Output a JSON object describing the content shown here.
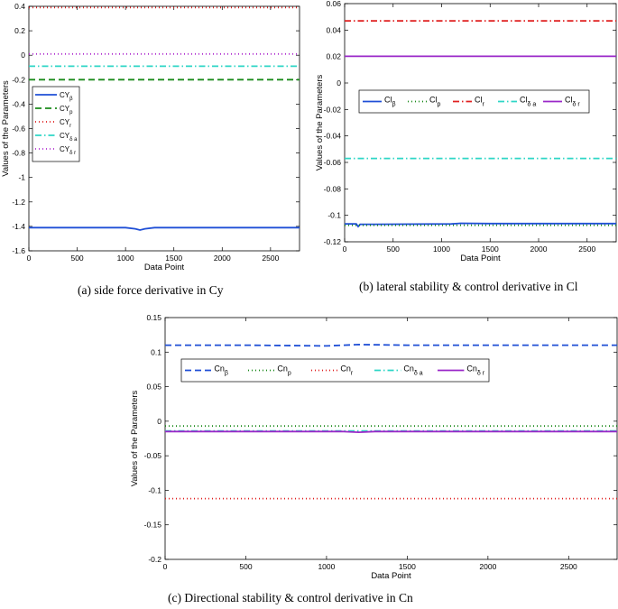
{
  "captions": {
    "a": "(a)  side force derivative in Cy",
    "b": "(b)  lateral stability & control derivative in Cl",
    "c": "(c)  Directional stability & control derivative in Cn"
  },
  "chart_data": [
    {
      "id": "a",
      "type": "line",
      "xlabel": "Data Point",
      "ylabel": "Values of the Parameters",
      "xlim": [
        0,
        2800
      ],
      "ylim": [
        -1.6,
        0.4
      ],
      "xticks": [
        0,
        500,
        1000,
        1500,
        2000,
        2500
      ],
      "yticks": [
        0.4,
        0.2,
        0,
        -0.2,
        -0.4,
        -0.6,
        -0.8,
        -1,
        -1.2,
        -1.4,
        -1.6
      ],
      "legend": "vertical, left",
      "series": [
        {
          "name": "CYβ",
          "base": "CY",
          "sub": "β",
          "color": "#1f4fd6",
          "dash": "",
          "x": [
            0,
            500,
            1000,
            1100,
            1150,
            1200,
            1300,
            2000,
            2800
          ],
          "y": [
            -1.41,
            -1.41,
            -1.41,
            -1.42,
            -1.43,
            -1.42,
            -1.41,
            -1.41,
            -1.41
          ]
        },
        {
          "name": "CYp",
          "base": "CY",
          "sub": "p",
          "color": "#1a8a1a",
          "dash": "7,4",
          "x": [
            0,
            2800
          ],
          "y": [
            -0.2,
            -0.2
          ]
        },
        {
          "name": "CYr",
          "base": "CY",
          "sub": "r",
          "color": "#e02020",
          "dash": "1,3",
          "x": [
            0,
            2800
          ],
          "y": [
            0.39,
            0.39
          ]
        },
        {
          "name": "CYδa",
          "base": "CY",
          "sub": "δ a",
          "color": "#2ed6c6",
          "dash": "7,3,1.5,3",
          "x": [
            0,
            2800
          ],
          "y": [
            -0.09,
            -0.09
          ]
        },
        {
          "name": "CYδr",
          "base": "CY",
          "sub": "δ r",
          "color": "#b030d0",
          "dash": "1,3",
          "x": [
            0,
            2800
          ],
          "y": [
            0.01,
            0.01
          ]
        }
      ]
    },
    {
      "id": "b",
      "type": "line",
      "xlabel": "Data Point",
      "ylabel": "Values of the Parameters",
      "xlim": [
        0,
        2800
      ],
      "ylim": [
        -0.12,
        0.06
      ],
      "xticks": [
        0,
        500,
        1000,
        1500,
        2000,
        2500
      ],
      "yticks": [
        0.06,
        0.04,
        0.02,
        0,
        -0.02,
        -0.04,
        -0.06,
        -0.08,
        -0.1,
        -0.12
      ],
      "legend": "horizontal, top",
      "series": [
        {
          "name": "Clβ",
          "base": "Cl",
          "sub": "β",
          "color": "#1f4fd6",
          "dash": "",
          "x": [
            0,
            120,
            140,
            160,
            300,
            1100,
            1200,
            1500,
            2800
          ],
          "y": [
            -0.1065,
            -0.1065,
            -0.1085,
            -0.1068,
            -0.1068,
            -0.1065,
            -0.106,
            -0.1062,
            -0.1062
          ]
        },
        {
          "name": "Clp",
          "base": "Cl",
          "sub": "p",
          "color": "#1a8a1a",
          "dash": "1,3",
          "x": [
            0,
            2800
          ],
          "y": [
            -0.1075,
            -0.1075
          ]
        },
        {
          "name": "Clr",
          "base": "Cl",
          "sub": "r",
          "color": "#e02020",
          "dash": "7,3,1.5,3",
          "x": [
            0,
            2800
          ],
          "y": [
            0.047,
            0.047
          ]
        },
        {
          "name": "Clδa",
          "base": "Cl",
          "sub": "δ a",
          "color": "#2ed6c6",
          "dash": "7,3,1.5,3",
          "x": [
            0,
            2800
          ],
          "y": [
            -0.057,
            -0.057
          ]
        },
        {
          "name": "Clδr",
          "base": "Cl",
          "sub": "δ r",
          "color": "#9a28c8",
          "dash": "",
          "x": [
            0,
            2800
          ],
          "y": [
            0.0202,
            0.0202
          ]
        }
      ]
    },
    {
      "id": "c",
      "type": "line",
      "xlabel": "Data Point",
      "ylabel": "Values of the Parameters",
      "xlim": [
        0,
        2800
      ],
      "ylim": [
        -0.2,
        0.15
      ],
      "xticks": [
        0,
        500,
        1000,
        1500,
        2000,
        2500
      ],
      "yticks": [
        0.15,
        0.1,
        0.05,
        0,
        -0.05,
        -0.1,
        -0.15,
        -0.2
      ],
      "legend": "horizontal, top",
      "series": [
        {
          "name": "Cnβ",
          "base": "Cn",
          "sub": "β",
          "color": "#1f4fd6",
          "dash": "7,4",
          "x": [
            0,
            500,
            1000,
            1200,
            1500,
            2800
          ],
          "y": [
            0.11,
            0.11,
            0.109,
            0.111,
            0.11,
            0.11
          ]
        },
        {
          "name": "Cnp",
          "base": "Cn",
          "sub": "p",
          "color": "#1a8a1a",
          "dash": "1,3",
          "x": [
            0,
            2800
          ],
          "y": [
            -0.007,
            -0.007
          ]
        },
        {
          "name": "Cnr",
          "base": "Cn",
          "sub": "r",
          "color": "#e02020",
          "dash": "1,3",
          "x": [
            0,
            2800
          ],
          "y": [
            -0.112,
            -0.112
          ]
        },
        {
          "name": "Cnδa",
          "base": "Cn",
          "sub": "δ a",
          "color": "#2ed6c6",
          "dash": "7,3,1.5,3",
          "x": [
            0,
            2800
          ],
          "y": [
            -0.014,
            -0.014
          ]
        },
        {
          "name": "Cnδr",
          "base": "Cn",
          "sub": "δ r",
          "color": "#9a28c8",
          "dash": "",
          "x": [
            0,
            1100,
            1200,
            1300,
            2800
          ],
          "y": [
            -0.015,
            -0.015,
            -0.016,
            -0.015,
            -0.015
          ]
        }
      ]
    }
  ]
}
